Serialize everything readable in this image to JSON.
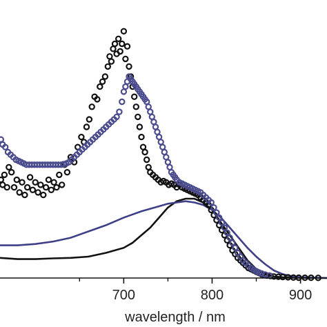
{
  "chart_data": {
    "type": "scatter",
    "title": "",
    "xlabel": "wavelength / nm",
    "ylabel": "",
    "xlim": [
      560,
      930
    ],
    "ylim": [
      0,
      1.0
    ],
    "xticks": [
      700,
      800,
      900
    ],
    "xtick_labels": [
      "700",
      "800",
      "900"
    ],
    "grid": false,
    "legend": "none",
    "series": [
      {
        "marker": "open-circle",
        "color": "#111111",
        "points": [
          [
            561,
            0.39
          ],
          [
            563,
            0.37
          ],
          [
            565,
            0.41
          ],
          [
            568,
            0.36
          ],
          [
            570,
            0.44
          ],
          [
            573,
            0.42
          ],
          [
            576,
            0.36
          ],
          [
            579,
            0.39
          ],
          [
            582,
            0.34
          ],
          [
            585,
            0.38
          ],
          [
            588,
            0.33
          ],
          [
            591,
            0.36
          ],
          [
            594,
            0.4
          ],
          [
            597,
            0.35
          ],
          [
            600,
            0.38
          ],
          [
            603,
            0.34
          ],
          [
            606,
            0.37
          ],
          [
            609,
            0.33
          ],
          [
            612,
            0.36
          ],
          [
            615,
            0.39
          ],
          [
            618,
            0.35
          ],
          [
            621,
            0.38
          ],
          [
            624,
            0.36
          ],
          [
            627,
            0.41
          ],
          [
            630,
            0.37
          ],
          [
            633,
            0.45
          ],
          [
            636,
            0.42
          ],
          [
            640,
            0.48
          ],
          [
            644,
            0.46
          ],
          [
            648,
            0.52
          ],
          [
            652,
            0.56
          ],
          [
            655,
            0.54
          ],
          [
            658,
            0.6
          ],
          [
            661,
            0.63
          ],
          [
            664,
            0.68
          ],
          [
            667,
            0.72
          ],
          [
            670,
            0.71
          ],
          [
            673,
            0.76
          ],
          [
            676,
            0.78
          ],
          [
            679,
            0.8
          ],
          [
            682,
            0.84
          ],
          [
            684,
            0.88
          ],
          [
            686,
            0.86
          ],
          [
            688,
            0.91
          ],
          [
            690,
            0.93
          ],
          [
            692,
            0.89
          ],
          [
            694,
            0.95
          ],
          [
            696,
            0.9
          ],
          [
            698,
            0.93
          ],
          [
            700,
            0.98
          ],
          [
            702,
            0.87
          ],
          [
            704,
            0.92
          ],
          [
            706,
            0.84
          ],
          [
            708,
            0.8
          ],
          [
            710,
            0.76
          ],
          [
            712,
            0.72
          ],
          [
            714,
            0.68
          ],
          [
            716,
            0.64
          ],
          [
            718,
            0.6
          ],
          [
            720,
            0.56
          ],
          [
            722,
            0.52
          ],
          [
            724,
            0.5
          ],
          [
            726,
            0.47
          ],
          [
            728,
            0.44
          ],
          [
            730,
            0.42
          ],
          [
            733,
            0.41
          ],
          [
            736,
            0.4
          ],
          [
            739,
            0.39
          ],
          [
            742,
            0.38
          ],
          [
            745,
            0.385
          ],
          [
            748,
            0.38
          ],
          [
            751,
            0.37
          ],
          [
            754,
            0.375
          ],
          [
            757,
            0.37
          ],
          [
            760,
            0.36
          ],
          [
            763,
            0.37
          ],
          [
            766,
            0.36
          ],
          [
            769,
            0.355
          ],
          [
            772,
            0.35
          ],
          [
            775,
            0.345
          ],
          [
            778,
            0.34
          ],
          [
            781,
            0.335
          ],
          [
            784,
            0.33
          ],
          [
            787,
            0.32
          ],
          [
            790,
            0.31
          ],
          [
            793,
            0.3
          ],
          [
            796,
            0.29
          ],
          [
            799,
            0.27
          ],
          [
            802,
            0.25
          ],
          [
            805,
            0.23
          ],
          [
            808,
            0.21
          ],
          [
            811,
            0.19
          ],
          [
            814,
            0.17
          ],
          [
            817,
            0.15
          ],
          [
            820,
            0.13
          ],
          [
            823,
            0.11
          ],
          [
            826,
            0.095
          ],
          [
            829,
            0.08
          ],
          [
            832,
            0.07
          ],
          [
            835,
            0.06
          ],
          [
            838,
            0.05
          ],
          [
            841,
            0.04
          ],
          [
            844,
            0.035
          ],
          [
            847,
            0.03
          ],
          [
            850,
            0.025
          ],
          [
            853,
            0.02
          ],
          [
            856,
            0.015
          ],
          [
            859,
            0.012
          ],
          [
            862,
            0.01
          ],
          [
            866,
            0.008
          ],
          [
            870,
            0.006
          ],
          [
            875,
            0.005
          ],
          [
            880,
            0.004
          ],
          [
            886,
            0.003
          ],
          [
            892,
            0.002
          ],
          [
            898,
            0.0015
          ],
          [
            905,
            0.001
          ],
          [
            912,
            0.001
          ],
          [
            920,
            0.0005
          ]
        ]
      },
      {
        "marker": "open-circle",
        "color": "#4b4c8e",
        "points": [
          [
            561,
            0.55
          ],
          [
            563,
            0.53
          ],
          [
            566,
            0.52
          ],
          [
            569,
            0.5
          ],
          [
            572,
            0.49
          ],
          [
            575,
            0.48
          ],
          [
            578,
            0.47
          ],
          [
            581,
            0.465
          ],
          [
            584,
            0.46
          ],
          [
            587,
            0.455
          ],
          [
            590,
            0.45
          ],
          [
            593,
            0.45
          ],
          [
            596,
            0.45
          ],
          [
            599,
            0.45
          ],
          [
            602,
            0.45
          ],
          [
            605,
            0.45
          ],
          [
            608,
            0.45
          ],
          [
            611,
            0.45
          ],
          [
            614,
            0.45
          ],
          [
            617,
            0.45
          ],
          [
            620,
            0.45
          ],
          [
            623,
            0.45
          ],
          [
            626,
            0.45
          ],
          [
            629,
            0.45
          ],
          [
            632,
            0.452
          ],
          [
            635,
            0.455
          ],
          [
            638,
            0.46
          ],
          [
            641,
            0.47
          ],
          [
            644,
            0.48
          ],
          [
            647,
            0.49
          ],
          [
            650,
            0.5
          ],
          [
            653,
            0.51
          ],
          [
            656,
            0.52
          ],
          [
            659,
            0.53
          ],
          [
            662,
            0.54
          ],
          [
            665,
            0.55
          ],
          [
            668,
            0.56
          ],
          [
            671,
            0.57
          ],
          [
            674,
            0.58
          ],
          [
            677,
            0.59
          ],
          [
            680,
            0.6
          ],
          [
            683,
            0.61
          ],
          [
            686,
            0.62
          ],
          [
            689,
            0.63
          ],
          [
            692,
            0.64
          ],
          [
            695,
            0.66
          ],
          [
            698,
            0.7
          ],
          [
            700,
            0.74
          ],
          [
            702,
            0.76
          ],
          [
            704,
            0.78
          ],
          [
            706,
            0.8
          ],
          [
            708,
            0.79
          ],
          [
            710,
            0.78
          ],
          [
            712,
            0.77
          ],
          [
            714,
            0.76
          ],
          [
            716,
            0.75
          ],
          [
            718,
            0.74
          ],
          [
            720,
            0.73
          ],
          [
            722,
            0.72
          ],
          [
            724,
            0.71
          ],
          [
            726,
            0.7
          ],
          [
            728,
            0.68
          ],
          [
            730,
            0.66
          ],
          [
            732,
            0.64
          ],
          [
            734,
            0.62
          ],
          [
            736,
            0.6
          ],
          [
            738,
            0.58
          ],
          [
            740,
            0.56
          ],
          [
            742,
            0.54
          ],
          [
            744,
            0.52
          ],
          [
            746,
            0.5
          ],
          [
            748,
            0.48
          ],
          [
            750,
            0.46
          ],
          [
            752,
            0.44
          ],
          [
            754,
            0.42
          ],
          [
            756,
            0.41
          ],
          [
            758,
            0.4
          ],
          [
            760,
            0.39
          ],
          [
            763,
            0.38
          ],
          [
            766,
            0.375
          ],
          [
            769,
            0.37
          ],
          [
            772,
            0.365
          ],
          [
            775,
            0.36
          ],
          [
            778,
            0.355
          ],
          [
            781,
            0.35
          ],
          [
            784,
            0.345
          ],
          [
            787,
            0.34
          ],
          [
            790,
            0.33
          ],
          [
            793,
            0.32
          ],
          [
            796,
            0.31
          ],
          [
            799,
            0.3
          ],
          [
            802,
            0.28
          ],
          [
            805,
            0.26
          ],
          [
            808,
            0.24
          ],
          [
            811,
            0.22
          ],
          [
            814,
            0.2
          ],
          [
            817,
            0.18
          ],
          [
            820,
            0.16
          ],
          [
            823,
            0.14
          ],
          [
            826,
            0.12
          ],
          [
            829,
            0.1
          ],
          [
            832,
            0.085
          ],
          [
            835,
            0.07
          ],
          [
            838,
            0.06
          ],
          [
            841,
            0.05
          ],
          [
            844,
            0.04
          ],
          [
            847,
            0.033
          ],
          [
            850,
            0.027
          ],
          [
            853,
            0.022
          ],
          [
            856,
            0.018
          ],
          [
            860,
            0.014
          ],
          [
            865,
            0.01
          ]
        ]
      },
      {
        "marker": "line",
        "color": "#111111",
        "points": [
          [
            560,
            0.08
          ],
          [
            580,
            0.075
          ],
          [
            600,
            0.075
          ],
          [
            620,
            0.078
          ],
          [
            640,
            0.08
          ],
          [
            660,
            0.085
          ],
          [
            680,
            0.1
          ],
          [
            700,
            0.12
          ],
          [
            710,
            0.14
          ],
          [
            720,
            0.17
          ],
          [
            730,
            0.2
          ],
          [
            740,
            0.24
          ],
          [
            750,
            0.28
          ],
          [
            760,
            0.305
          ],
          [
            770,
            0.315
          ],
          [
            780,
            0.315
          ],
          [
            790,
            0.3
          ],
          [
            800,
            0.27
          ],
          [
            810,
            0.22
          ],
          [
            820,
            0.17
          ],
          [
            830,
            0.12
          ],
          [
            840,
            0.07
          ],
          [
            850,
            0.035
          ],
          [
            860,
            0.015
          ],
          [
            870,
            0.006
          ],
          [
            880,
            0.003
          ],
          [
            900,
            0.001
          ],
          [
            930,
            0.0
          ]
        ]
      },
      {
        "marker": "line",
        "color": "#3f3f88",
        "points": [
          [
            560,
            0.13
          ],
          [
            580,
            0.13
          ],
          [
            600,
            0.135
          ],
          [
            620,
            0.145
          ],
          [
            640,
            0.16
          ],
          [
            660,
            0.185
          ],
          [
            680,
            0.21
          ],
          [
            700,
            0.24
          ],
          [
            720,
            0.265
          ],
          [
            740,
            0.285
          ],
          [
            750,
            0.295
          ],
          [
            760,
            0.3
          ],
          [
            770,
            0.305
          ],
          [
            780,
            0.3
          ],
          [
            790,
            0.29
          ],
          [
            800,
            0.27
          ],
          [
            810,
            0.24
          ],
          [
            820,
            0.2
          ],
          [
            830,
            0.16
          ],
          [
            840,
            0.12
          ],
          [
            850,
            0.085
          ],
          [
            860,
            0.055
          ],
          [
            870,
            0.03
          ],
          [
            880,
            0.015
          ],
          [
            890,
            0.007
          ],
          [
            900,
            0.003
          ],
          [
            915,
            0.001
          ],
          [
            930,
            0.0
          ]
        ]
      }
    ]
  }
}
